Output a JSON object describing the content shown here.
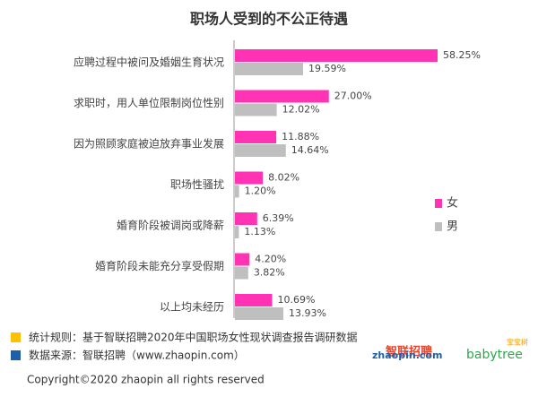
{
  "chart_data": {
    "type": "bar",
    "orientation": "horizontal",
    "title": "职场人受到的不公正待遇",
    "categories": [
      "应聘过程中被问及婚姻生育状况",
      "求职时，用人单位限制岗位性别",
      "因为照顾家庭被迫放弃事业发展",
      "职场性骚扰",
      "婚育阶段被调岗或降薪",
      "婚育阶段未能充分享受假期",
      "以上均未经历"
    ],
    "series": [
      {
        "name": "女",
        "color": "#ff33b4",
        "values": [
          58.25,
          27.0,
          11.88,
          8.02,
          6.39,
          4.2,
          10.69
        ],
        "value_labels": [
          "58.25%",
          "27.00%",
          "11.88%",
          "8.02%",
          "6.39%",
          "4.20%",
          "10.69%"
        ]
      },
      {
        "name": "男",
        "color": "#bfbfbf",
        "values": [
          19.59,
          12.02,
          14.64,
          1.2,
          1.13,
          3.82,
          13.93
        ],
        "value_labels": [
          "19.59%",
          "12.02%",
          "14.64%",
          "1.20%",
          "1.13%",
          "3.82%",
          "13.93%"
        ]
      }
    ],
    "legend": "right",
    "notes": [
      {
        "text": "统计规则：基于智联招聘2020年中国职场女性现状调查报告调研数据",
        "color": "#ffc000"
      },
      {
        "text": "数据来源：智联招聘（www.zhaopin.com）",
        "color": "#1f5fa8"
      }
    ],
    "logos": [
      "智联招聘",
      "zhaopin.com",
      "babytree",
      "宝宝树"
    ],
    "copyright": "Copyright©2020 zhaopin all rights reserved"
  }
}
